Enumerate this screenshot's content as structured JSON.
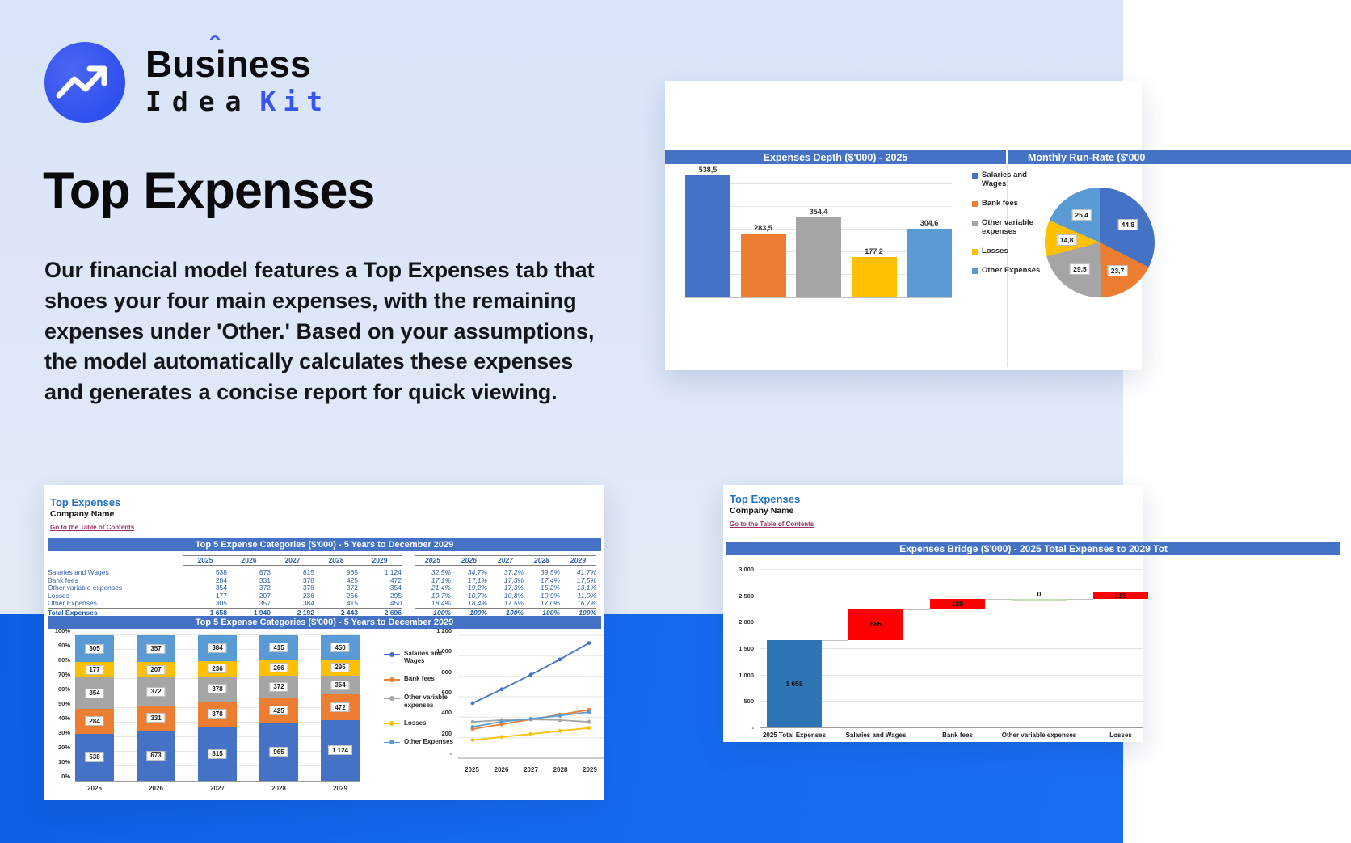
{
  "brand": {
    "part1": "Bus",
    "part_i": "i",
    "hat": "ˆ",
    "part2": "ness",
    "idea": "Idea",
    "kit": "Kit"
  },
  "hero": {
    "title": "Top Expenses",
    "description": "Our financial model features a Top Expenses tab that shoes your four main expenses, with the remaining expenses under 'Other.' Based on your assumptions, the model automatically calculates these expenses and generates a concise report for quick viewing."
  },
  "colors": {
    "accent_blue": "#3a55ee",
    "band_blue": "#1166ed",
    "header_bar": "#4472C4",
    "series": [
      "#4472C4",
      "#ED7D31",
      "#A5A5A5",
      "#FFC000",
      "#5B9BD5"
    ],
    "waterfall_blue": "#2E75B6",
    "waterfall_red": "#FF0000",
    "waterfall_green": "#C6E0B4",
    "sheet_title_blue": "#1F70C5",
    "link_maroon": "#9C3162"
  },
  "legend": [
    {
      "label": "Salaries and Wages",
      "color": "#4472C4"
    },
    {
      "label": "Bank fees",
      "color": "#ED7D31"
    },
    {
      "label": "Other variable expenses",
      "color": "#A5A5A5"
    },
    {
      "label": "Losses",
      "color": "#FFC000"
    },
    {
      "label": "Other Expenses",
      "color": "#5B9BD5"
    }
  ],
  "depth_card": {
    "bar_header": "Expenses Depth ($'000) - 2025",
    "pie_header": "Monthly Run-Rate ($'000"
  },
  "sheet_card": {
    "title": "Top Expenses",
    "company": "Company Name",
    "link": "Go to the Table of Contents",
    "table_header": "Top 5 Expense Categories ($'000) - 5 Years to December 2029",
    "chart_header": "Top 5 Expense Categories ($'000) - 5 Years to December 2029"
  },
  "bridge_card": {
    "title": "Top Expenses",
    "company": "Company Name",
    "link": "Go to the Table of Contents",
    "header": "Expenses Bridge ($'000) - 2025 Total Expenses to 2029 Tot"
  },
  "chart_data": [
    {
      "id": "expenses_depth",
      "type": "bar",
      "title": "Expenses Depth ($'000) - 2025",
      "categories": [
        "Salaries and Wages",
        "Bank fees",
        "Other variable expenses",
        "Losses",
        "Other Expenses"
      ],
      "values": [
        538.5,
        283.5,
        354.4,
        177.2,
        304.6
      ],
      "labels": [
        "538,5",
        "283,5",
        "354,4",
        "177,2",
        "304,6"
      ],
      "colors": [
        "#4472C4",
        "#ED7D31",
        "#A5A5A5",
        "#FFC000",
        "#5B9BD5"
      ],
      "ylim": [
        0,
        600
      ],
      "grid": true,
      "legend_position": "right"
    },
    {
      "id": "monthly_run_rate",
      "type": "pie",
      "title": "Monthly Run-Rate ($'000",
      "categories": [
        "Salaries and Wages",
        "Bank fees",
        "Other variable expenses",
        "Losses",
        "Other Expenses"
      ],
      "values": [
        44.8,
        23.7,
        29.5,
        14.8,
        25.4
      ],
      "labels": [
        "44,8",
        "23,7",
        "29,5",
        "14,8",
        "25,4"
      ],
      "colors": [
        "#4472C4",
        "#ED7D31",
        "#A5A5A5",
        "#FFC000",
        "#5B9BD5"
      ]
    },
    {
      "id": "top5_table",
      "type": "table",
      "title": "Top 5 Expense Categories ($'000) - 5 Years to December 2029",
      "years": [
        "2025",
        "2026",
        "2027",
        "2028",
        "2029"
      ],
      "rows": [
        {
          "label": "Salaries and Wages",
          "values": [
            "538",
            "673",
            "815",
            "965",
            "1 124"
          ],
          "pcts": [
            "32,5%",
            "34,7%",
            "37,2%",
            "39,5%",
            "41,7%"
          ]
        },
        {
          "label": "Bank fees",
          "values": [
            "284",
            "331",
            "378",
            "425",
            "472"
          ],
          "pcts": [
            "17,1%",
            "17,1%",
            "17,3%",
            "17,4%",
            "17,5%"
          ]
        },
        {
          "label": "Other variable expenses",
          "values": [
            "354",
            "372",
            "378",
            "372",
            "354"
          ],
          "pcts": [
            "21,4%",
            "19,2%",
            "17,3%",
            "15,2%",
            "13,1%"
          ]
        },
        {
          "label": "Losses",
          "values": [
            "177",
            "207",
            "236",
            "266",
            "295"
          ],
          "pcts": [
            "10,7%",
            "10,7%",
            "10,8%",
            "10,9%",
            "11,0%"
          ]
        },
        {
          "label": "Other Expenses",
          "values": [
            "305",
            "357",
            "384",
            "415",
            "450"
          ],
          "pcts": [
            "18,4%",
            "18,4%",
            "17,5%",
            "17,0%",
            "16,7%"
          ]
        }
      ],
      "total": {
        "label": "Total Expenses",
        "values": [
          "1 658",
          "1 940",
          "2 192",
          "2 443",
          "2 696"
        ],
        "pcts": [
          "100%",
          "100%",
          "100%",
          "100%",
          "100%"
        ]
      }
    },
    {
      "id": "top5_stacked",
      "type": "bar",
      "stacked": true,
      "percent": true,
      "title": "Top 5 Expense Categories ($'000) - 5 Years to December 2029",
      "categories": [
        "2025",
        "2026",
        "2027",
        "2028",
        "2029"
      ],
      "yticks": [
        "100%",
        "90%",
        "80%",
        "70%",
        "60%",
        "50%",
        "40%",
        "30%",
        "20%",
        "10%",
        "0%"
      ],
      "series": [
        {
          "name": "Salaries and Wages",
          "color": "#4472C4",
          "values": [
            538,
            673,
            815,
            965,
            1124
          ],
          "labels": [
            "538",
            "673",
            "815",
            "965",
            "1 124"
          ],
          "shares": [
            32.5,
            34.7,
            37.2,
            39.5,
            41.7
          ]
        },
        {
          "name": "Bank fees",
          "color": "#ED7D31",
          "values": [
            284,
            331,
            378,
            425,
            472
          ],
          "labels": [
            "284",
            "331",
            "378",
            "425",
            "472"
          ],
          "shares": [
            17.1,
            17.1,
            17.3,
            17.4,
            17.5
          ]
        },
        {
          "name": "Other variable expenses",
          "color": "#A5A5A5",
          "values": [
            354,
            372,
            378,
            372,
            354
          ],
          "labels": [
            "354",
            "372",
            "378",
            "372",
            "354"
          ],
          "shares": [
            21.4,
            19.2,
            17.3,
            15.2,
            13.1
          ]
        },
        {
          "name": "Losses",
          "color": "#FFC000",
          "values": [
            177,
            207,
            236,
            266,
            295
          ],
          "labels": [
            "177",
            "207",
            "236",
            "266",
            "295"
          ],
          "shares": [
            10.7,
            10.7,
            10.8,
            10.9,
            11.0
          ]
        },
        {
          "name": "Other Expenses",
          "color": "#5B9BD5",
          "values": [
            305,
            357,
            384,
            415,
            450
          ],
          "labels": [
            "305",
            "357",
            "384",
            "415",
            "450"
          ],
          "shares": [
            18.4,
            18.4,
            17.5,
            17.0,
            16.7
          ]
        }
      ]
    },
    {
      "id": "top5_lines",
      "type": "line",
      "x": [
        "2025",
        "2026",
        "2027",
        "2028",
        "2029"
      ],
      "ylim": [
        0,
        1200
      ],
      "yticks": [
        "1 200",
        "1 000",
        "800",
        "600",
        "400",
        "200",
        "-"
      ],
      "series": [
        {
          "name": "Salaries and Wages",
          "color": "#4472C4",
          "values": [
            538,
            673,
            815,
            965,
            1124
          ]
        },
        {
          "name": "Bank fees",
          "color": "#ED7D31",
          "values": [
            284,
            331,
            378,
            425,
            472
          ]
        },
        {
          "name": "Other variable expenses",
          "color": "#A5A5A5",
          "values": [
            354,
            372,
            378,
            372,
            354
          ]
        },
        {
          "name": "Losses",
          "color": "#FFC000",
          "values": [
            177,
            207,
            236,
            266,
            295
          ]
        },
        {
          "name": "Other Expenses",
          "color": "#5B9BD5",
          "values": [
            305,
            357,
            384,
            415,
            450
          ]
        }
      ]
    },
    {
      "id": "expenses_bridge",
      "type": "waterfall",
      "title": "Expenses Bridge ($'000) - 2025 Total Expenses to 2029 Tot",
      "categories": [
        "2025 Total Expenses",
        "Salaries and Wages",
        "Bank fees",
        "Other variable expenses",
        "Losses"
      ],
      "bases": [
        0,
        1658,
        2243,
        2432,
        2432
      ],
      "values": [
        1658,
        585,
        189,
        0,
        118
      ],
      "labels": [
        "1 658",
        "585",
        "189",
        "0",
        "118"
      ],
      "colors": [
        "#2E75B6",
        "#FF0000",
        "#FF0000",
        "#C6E0B4",
        "#FF0000"
      ],
      "ylim": [
        0,
        3000
      ],
      "yticks": [
        "3 000",
        "2 500",
        "2 000",
        "1 500",
        "1 000",
        "500",
        "-"
      ]
    }
  ]
}
